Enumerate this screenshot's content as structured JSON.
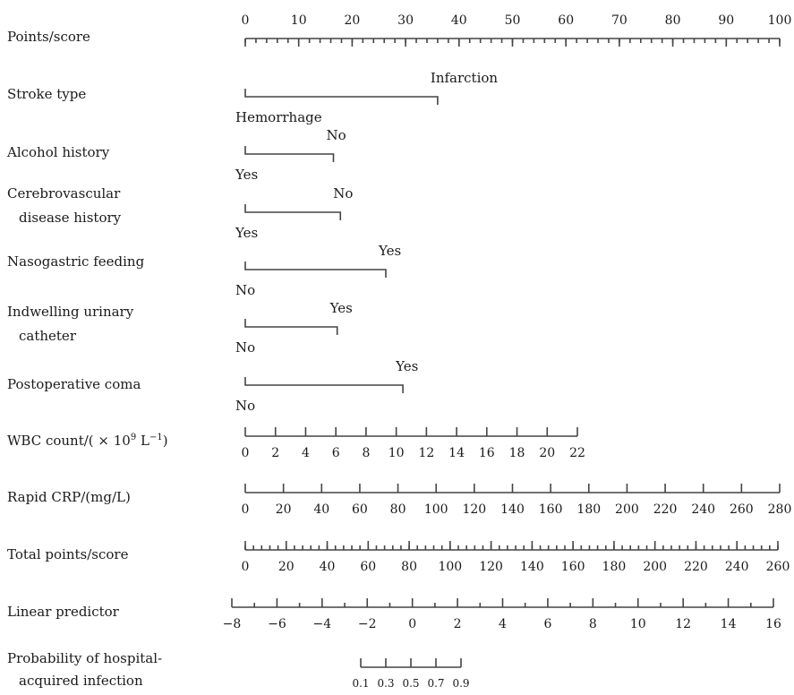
{
  "chart_data": {
    "type": "nomogram",
    "rows": [
      {
        "label": [
          "Points/score"
        ],
        "kind": "axis",
        "range": [
          0,
          100
        ],
        "ticks": [
          0,
          10,
          20,
          30,
          40,
          50,
          60,
          70,
          80,
          90,
          100
        ],
        "minor_step": 2,
        "labels_above": true
      },
      {
        "label": [
          "Stroke type"
        ],
        "kind": "categorical",
        "levels": [
          {
            "name": "Hemorrhage",
            "points": 0
          },
          {
            "name": "Infarction",
            "points": 36
          }
        ]
      },
      {
        "label": [
          "Alcohol history"
        ],
        "kind": "categorical",
        "levels": [
          {
            "name": "Yes",
            "points": 0
          },
          {
            "name": "No",
            "points": 16.5
          }
        ]
      },
      {
        "label": [
          "Cerebrovascular",
          "disease history"
        ],
        "kind": "categorical",
        "levels": [
          {
            "name": "Yes",
            "points": 0
          },
          {
            "name": "No",
            "points": 17.8
          }
        ]
      },
      {
        "label": [
          "Nasogastric feeding"
        ],
        "kind": "categorical",
        "levels": [
          {
            "name": "No",
            "points": 0
          },
          {
            "name": "Yes",
            "points": 26.3
          }
        ]
      },
      {
        "label": [
          "Indwelling urinary",
          "catheter"
        ],
        "kind": "categorical",
        "levels": [
          {
            "name": "No",
            "points": 0
          },
          {
            "name": "Yes",
            "points": 17.2
          }
        ]
      },
      {
        "label": [
          "Postoperative coma"
        ],
        "kind": "categorical",
        "levels": [
          {
            "name": "No",
            "points": 0
          },
          {
            "name": "Yes",
            "points": 29.5
          }
        ]
      },
      {
        "label": [
          "WBC count/( × 10",
          "9",
          " L",
          "−1",
          ")"
        ],
        "kind": "axis",
        "ticks": [
          0,
          2,
          4,
          6,
          8,
          10,
          12,
          14,
          16,
          18,
          20,
          22
        ],
        "points_range": [
          0,
          63
        ]
      },
      {
        "label": [
          "Rapid CRP/(mg/L)"
        ],
        "kind": "axis",
        "ticks": [
          0,
          20,
          40,
          60,
          80,
          100,
          120,
          140,
          160,
          180,
          200,
          220,
          240,
          260,
          280
        ],
        "points_range": [
          0,
          100
        ]
      },
      {
        "label": [
          "Total points/score"
        ],
        "kind": "axis",
        "ticks": [
          0,
          20,
          40,
          60,
          80,
          100,
          120,
          140,
          160,
          180,
          200,
          220,
          240,
          260
        ],
        "minor_step": 4
      },
      {
        "label": [
          "Linear predictor"
        ],
        "kind": "axis",
        "ticks": [
          -8,
          -6,
          -4,
          -2,
          0,
          2,
          4,
          6,
          8,
          10,
          12,
          14,
          16
        ],
        "tick_labels": [
          "−8",
          "−6",
          "−4",
          "−2",
          "0",
          "2",
          "4",
          "6",
          "8",
          "10",
          "12",
          "14",
          "16"
        ]
      },
      {
        "label": [
          "Probability of hospital-",
          "acquired infection"
        ],
        "kind": "axis",
        "ticks": [
          0.1,
          0.3,
          0.5,
          0.7,
          0.9
        ],
        "tick_labels": [
          "0.1",
          "0.3",
          "0.5",
          "0.7",
          "0.9"
        ]
      }
    ]
  }
}
